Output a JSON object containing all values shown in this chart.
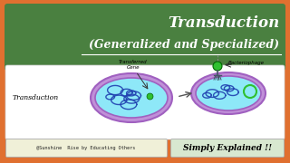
{
  "bg_color": "#e07030",
  "header_color": "#4a8040",
  "title_line1": "Transduction",
  "title_line2": "(Generalized and Specialized)",
  "title_color": "white",
  "content_bg": "white",
  "bacterium_fill": "#8ee8f8",
  "bacterium_border": "#a060c0",
  "bacterium_outer": "#c090d8",
  "dna_color": "#2040b0",
  "gene_color": "#30c030",
  "transduction_label": "Transduction",
  "transferred_gene_label": "Transferred\nGene",
  "bacteriophage_label": "Bacteriophage",
  "bottom_left_text": "@Sunshine  Rise by Educating Others ",
  "bottom_right_text": "Simply Explained !!",
  "bottom_left_bg": "#f0f0d8",
  "bottom_right_bg": "#d8e8d0"
}
